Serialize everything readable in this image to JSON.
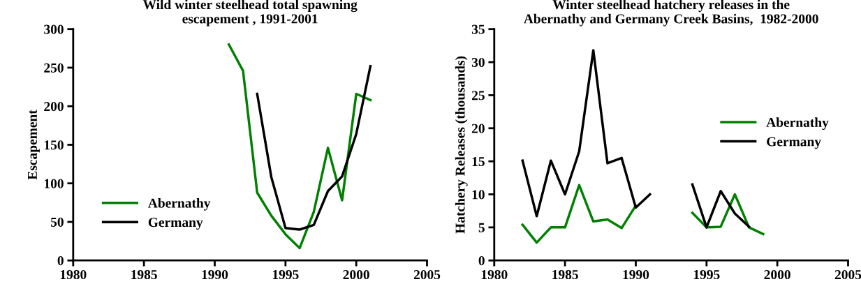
{
  "chart_data": [
    {
      "type": "line",
      "title": "Wild winter steelhead total spawning\nescapement , 1991-2001",
      "ylabel": "Escapement",
      "xlim": [
        1980,
        2005
      ],
      "xticks": [
        1980,
        1985,
        1990,
        1995,
        2000,
        2005
      ],
      "ylim": [
        0,
        300
      ],
      "yticks": [
        0,
        50,
        100,
        150,
        200,
        250,
        300
      ],
      "legend": "lower left",
      "grid": false,
      "series": [
        {
          "name": "Abernathy",
          "color": "#008000",
          "x": [
            1991,
            1992,
            1993,
            1994,
            1995,
            1996,
            1997,
            1998,
            1999,
            2000,
            2001
          ],
          "values": [
            280,
            246,
            88,
            58,
            34,
            16,
            63,
            146,
            78,
            216,
            208
          ]
        },
        {
          "name": "Germany",
          "color": "#000000",
          "x": [
            1993,
            1994,
            1995,
            1996,
            1997,
            1998,
            1999,
            2000,
            2001
          ],
          "values": [
            216,
            108,
            42,
            40,
            46,
            90,
            109,
            164,
            252
          ]
        }
      ]
    },
    {
      "type": "line",
      "title": "Winter steelhead hatchery releases in the\nAbernathy and Germany Creek Basins,  1982-2000",
      "ylabel": "Hatchery Releases (thousands)",
      "xlim": [
        1980,
        2005
      ],
      "xticks": [
        1980,
        1985,
        1990,
        1995,
        2000,
        2005
      ],
      "ylim": [
        0,
        35
      ],
      "yticks": [
        0,
        5,
        10,
        15,
        20,
        25,
        30,
        35
      ],
      "legend": "center right",
      "grid": false,
      "series": [
        {
          "name": "Abernathy",
          "color": "#008000",
          "x": [
            1982,
            1983,
            1984,
            1985,
            1986,
            1987,
            1988,
            1989,
            1990,
            1991,
            1992,
            1993,
            1994,
            1995,
            1996,
            1997,
            1998,
            1999
          ],
          "values": [
            5.4,
            2.7,
            5,
            5,
            11.4,
            5.9,
            6.2,
            4.9,
            8.3,
            null,
            null,
            null,
            7.2,
            5,
            5.1,
            10,
            5,
            4
          ]
        },
        {
          "name": "Germany",
          "color": "#000000",
          "x": [
            1982,
            1983,
            1984,
            1985,
            1986,
            1987,
            1988,
            1989,
            1990,
            1991,
            1992,
            1993,
            1994,
            1995,
            1996,
            1997,
            1998
          ],
          "values": [
            15.1,
            6.7,
            15.1,
            10,
            16.5,
            31.8,
            14.7,
            15.5,
            8,
            10,
            null,
            null,
            11.5,
            5,
            10.5,
            7.1,
            5.1
          ]
        }
      ]
    }
  ]
}
